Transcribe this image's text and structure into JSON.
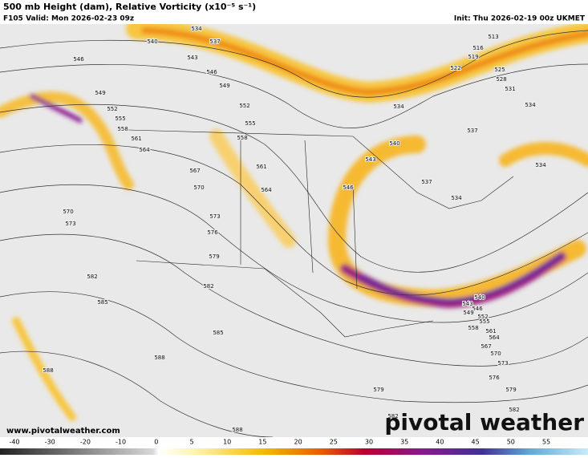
{
  "header": {
    "title": "500 mb Height (dam), Relative Vorticity (x10⁻⁵ s⁻¹)",
    "valid": "F105 Valid: Mon 2026-02-23 09z",
    "init": "Init: Thu 2026-02-19 00z UKMET"
  },
  "contour_labels": [
    534,
    540,
    537,
    546,
    543,
    546,
    549,
    549,
    552,
    552,
    555,
    555,
    558,
    558,
    561,
    561,
    564,
    564,
    567,
    570,
    573,
    576,
    579,
    582,
    585,
    588,
    570,
    573,
    582,
    585,
    588,
    588,
    579,
    582,
    513,
    516,
    519,
    522,
    525,
    528,
    531,
    534,
    534,
    537,
    540,
    543,
    537,
    534,
    534,
    546,
    540,
    543,
    546,
    549,
    552,
    555,
    558,
    561,
    564,
    567,
    570,
    573,
    576,
    579,
    582
  ],
  "colorbar": {
    "ticks": [
      -40,
      -30,
      -20,
      -10,
      0,
      5,
      10,
      15,
      20,
      25,
      30,
      35,
      40,
      45,
      50,
      55
    ]
  },
  "footer": {
    "website": "www.pivotalweather.com",
    "logo": "pivotal weather"
  }
}
